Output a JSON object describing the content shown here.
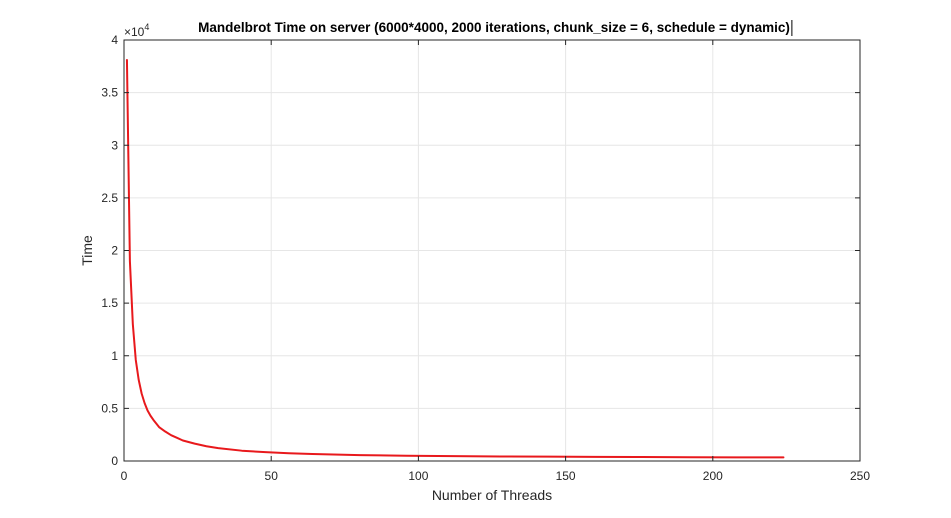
{
  "chart_data": {
    "type": "line",
    "title": "Mandelbrot Time on server (6000*4000, 2000 iterations, chunk_size = 6, schedule = dynamic)",
    "xlabel": "Number of Threads",
    "ylabel": "Time",
    "xlim": [
      0,
      250
    ],
    "ylim": [
      0,
      40000
    ],
    "y_exponent_label": {
      "base": "×10",
      "exponent": "4"
    },
    "x_ticks": [
      {
        "value": 0,
        "label": "0"
      },
      {
        "value": 50,
        "label": "50"
      },
      {
        "value": 100,
        "label": "100"
      },
      {
        "value": 150,
        "label": "150"
      },
      {
        "value": 200,
        "label": "200"
      },
      {
        "value": 250,
        "label": "250"
      }
    ],
    "y_ticks": [
      {
        "value": 0,
        "label": "0"
      },
      {
        "value": 5000,
        "label": "0.5"
      },
      {
        "value": 10000,
        "label": "1"
      },
      {
        "value": 15000,
        "label": "1.5"
      },
      {
        "value": 20000,
        "label": "2"
      },
      {
        "value": 25000,
        "label": "2.5"
      },
      {
        "value": 30000,
        "label": "3"
      },
      {
        "value": 35000,
        "label": "3.5"
      },
      {
        "value": 40000,
        "label": "4"
      }
    ],
    "grid": true,
    "series": [
      {
        "color": "#e8191c",
        "x": [
          1,
          2,
          3,
          4,
          5,
          6,
          7,
          8,
          9,
          10,
          12,
          14,
          16,
          18,
          20,
          24,
          28,
          32,
          40,
          48,
          56,
          64,
          80,
          96,
          112,
          128,
          144,
          160,
          176,
          192,
          208,
          224
        ],
        "y": [
          38100,
          19000,
          13000,
          9600,
          7700,
          6400,
          5500,
          4800,
          4300,
          3900,
          3200,
          2800,
          2450,
          2200,
          1950,
          1650,
          1400,
          1220,
          980,
          840,
          740,
          660,
          560,
          500,
          460,
          430,
          410,
          390,
          375,
          360,
          350,
          340
        ]
      }
    ]
  }
}
